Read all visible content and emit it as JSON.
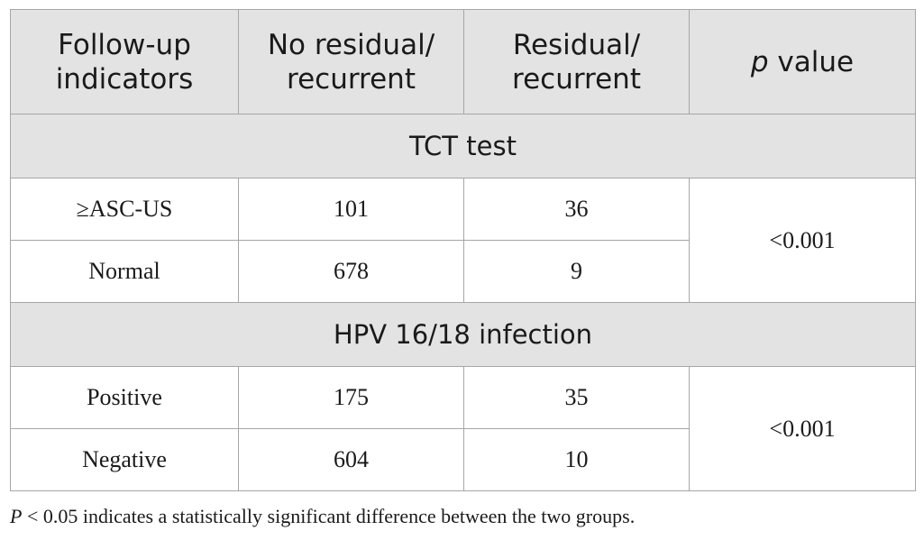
{
  "table": {
    "headers": {
      "col1": [
        "Follow-up",
        "indicators"
      ],
      "col2": [
        "No residual/",
        "recurrent"
      ],
      "col3": [
        "Residual/",
        "recurrent"
      ],
      "col4_italic": "p",
      "col4_rest": " value"
    },
    "sections": [
      {
        "title": "TCT test",
        "rows": [
          {
            "label": "≥ASC-US",
            "no_residual": "101",
            "residual": "36"
          },
          {
            "label": "Normal",
            "no_residual": "678",
            "residual": "9"
          }
        ],
        "p_value": "<0.001"
      },
      {
        "title": "HPV 16/18 infection",
        "rows": [
          {
            "label": "Positive",
            "no_residual": "175",
            "residual": "35"
          },
          {
            "label": "Negative",
            "no_residual": "604",
            "residual": "10"
          }
        ],
        "p_value": "<0.001"
      }
    ]
  },
  "footnote": {
    "italic": "P",
    "rest": " < 0.05 indicates a statistically significant difference between the two groups."
  }
}
